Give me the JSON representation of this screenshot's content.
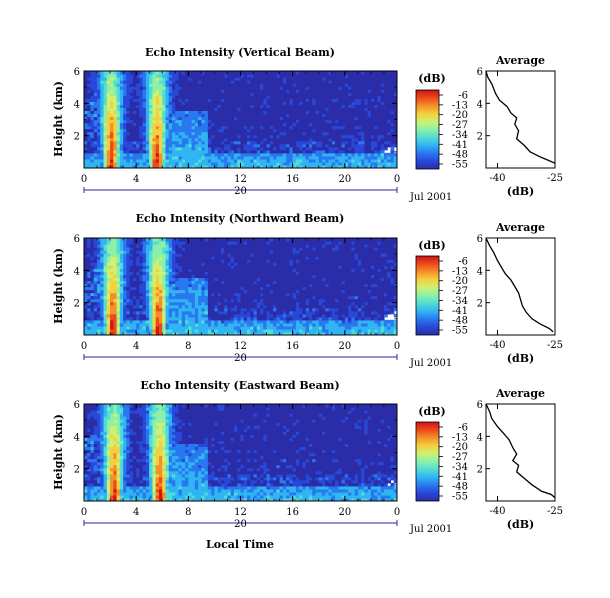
{
  "colors": {
    "colormap": [
      "#2a2ca8",
      "#2848d8",
      "#2a78f0",
      "#30b4f2",
      "#52dcd6",
      "#8cf0a8",
      "#d0f070",
      "#f4d040",
      "#f49028",
      "#ec4a1a",
      "#d01418"
    ],
    "axis": "#000000",
    "date_axis": "#2a2aa0"
  },
  "chart_data": [
    {
      "type": "heatmap",
      "title": "Echo Intensity (Vertical Beam)",
      "ylabel": "Height (km)",
      "x_ticks": [
        "0",
        "4",
        "8",
        "12",
        "16",
        "20",
        "0"
      ],
      "y_ticks": [
        "2",
        "4",
        "6"
      ],
      "xlim": [
        0,
        24
      ],
      "ylim": [
        0,
        6
      ],
      "date_labels": [
        "20",
        "Jul 2001"
      ],
      "colorbar": {
        "unit": "(dB)",
        "ticks": [
          "-6",
          "-13",
          "-20",
          "-27",
          "-34",
          "-41",
          "-48",
          "-55"
        ],
        "range": [
          -55,
          -6
        ]
      },
      "cores": [
        {
          "center_hour": 2.1,
          "top_km": 6.2
        },
        {
          "center_hour": 5.6,
          "top_km": 6.1
        }
      ],
      "average_profile": {
        "title": "Average",
        "xlabel": "(dB)",
        "x_ticks": [
          "-40",
          "-25"
        ],
        "y_ticks": [
          "2",
          "4",
          "6"
        ],
        "xlim": [
          -43,
          -25
        ],
        "ylim": [
          0,
          6
        ],
        "points": [
          [
            -43,
            6.0
          ],
          [
            -42.5,
            5.6
          ],
          [
            -41.5,
            5.2
          ],
          [
            -40.5,
            4.6
          ],
          [
            -39.5,
            4.2
          ],
          [
            -37.5,
            3.8
          ],
          [
            -36.5,
            3.4
          ],
          [
            -35,
            3.1
          ],
          [
            -35.5,
            2.7
          ],
          [
            -34.5,
            2.3
          ],
          [
            -35,
            1.8
          ],
          [
            -33,
            1.4
          ],
          [
            -31.5,
            1.0
          ],
          [
            -29,
            0.7
          ],
          [
            -27,
            0.5
          ],
          [
            -25,
            0.3
          ]
        ]
      }
    },
    {
      "type": "heatmap",
      "title": "Echo Intensity (Northward Beam)",
      "ylabel": "Height (km)",
      "x_ticks": [
        "0",
        "4",
        "8",
        "12",
        "16",
        "20",
        "0"
      ],
      "y_ticks": [
        "2",
        "4",
        "6"
      ],
      "xlim": [
        0,
        24
      ],
      "ylim": [
        0,
        6
      ],
      "date_labels": [
        "20",
        "Jul 2001"
      ],
      "colorbar": {
        "unit": "(dB)",
        "ticks": [
          "-6",
          "-13",
          "-20",
          "-27",
          "-34",
          "-41",
          "-48",
          "-55"
        ],
        "range": [
          -55,
          -6
        ]
      },
      "cores": [
        {
          "center_hour": 2.2,
          "top_km": 6.1
        },
        {
          "center_hour": 5.7,
          "top_km": 6.1
        }
      ],
      "average_profile": {
        "title": "Average",
        "xlabel": "(dB)",
        "x_ticks": [
          "-40",
          "-25"
        ],
        "y_ticks": [
          "2",
          "4",
          "6"
        ],
        "xlim": [
          -43,
          -25
        ],
        "ylim": [
          0,
          6
        ],
        "points": [
          [
            -43,
            6.0
          ],
          [
            -42,
            5.5
          ],
          [
            -41,
            5.1
          ],
          [
            -40,
            4.6
          ],
          [
            -39,
            4.2
          ],
          [
            -38,
            3.8
          ],
          [
            -36.5,
            3.4
          ],
          [
            -35.5,
            3.0
          ],
          [
            -34.5,
            2.6
          ],
          [
            -34,
            2.2
          ],
          [
            -33.5,
            1.8
          ],
          [
            -32.5,
            1.4
          ],
          [
            -31,
            1.0
          ],
          [
            -29,
            0.7
          ],
          [
            -26.5,
            0.4
          ],
          [
            -25.5,
            0.2
          ]
        ]
      }
    },
    {
      "type": "heatmap",
      "title": "Echo Intensity (Eastward Beam)",
      "ylabel": "Height (km)",
      "x_ticks": [
        "0",
        "4",
        "8",
        "12",
        "16",
        "20",
        "0"
      ],
      "y_ticks": [
        "2",
        "4",
        "6"
      ],
      "xlim": [
        0,
        24
      ],
      "ylim": [
        0,
        6
      ],
      "date_labels": [
        "20",
        "Jul 2001"
      ],
      "xlabel": "Local Time",
      "colorbar": {
        "unit": "(dB)",
        "ticks": [
          "-6",
          "-13",
          "-20",
          "-27",
          "-34",
          "-41",
          "-48",
          "-55"
        ],
        "range": [
          -55,
          -6
        ]
      },
      "cores": [
        {
          "center_hour": 2.3,
          "top_km": 6.0
        },
        {
          "center_hour": 5.8,
          "top_km": 6.0
        }
      ],
      "average_profile": {
        "title": "Average",
        "xlabel": "(dB)",
        "x_ticks": [
          "-40",
          "-25"
        ],
        "y_ticks": [
          "2",
          "4",
          "6"
        ],
        "xlim": [
          -43,
          -25
        ],
        "ylim": [
          0,
          6
        ],
        "points": [
          [
            -43,
            6.0
          ],
          [
            -42,
            5.5
          ],
          [
            -41.5,
            5.1
          ],
          [
            -40,
            4.6
          ],
          [
            -38.5,
            4.2
          ],
          [
            -37,
            3.8
          ],
          [
            -36,
            3.3
          ],
          [
            -35,
            2.9
          ],
          [
            -36,
            2.5
          ],
          [
            -34.5,
            2.2
          ],
          [
            -35,
            1.8
          ],
          [
            -33,
            1.4
          ],
          [
            -31,
            1.0
          ],
          [
            -28.5,
            0.6
          ],
          [
            -26,
            0.4
          ],
          [
            -25,
            0.2
          ]
        ]
      }
    }
  ]
}
